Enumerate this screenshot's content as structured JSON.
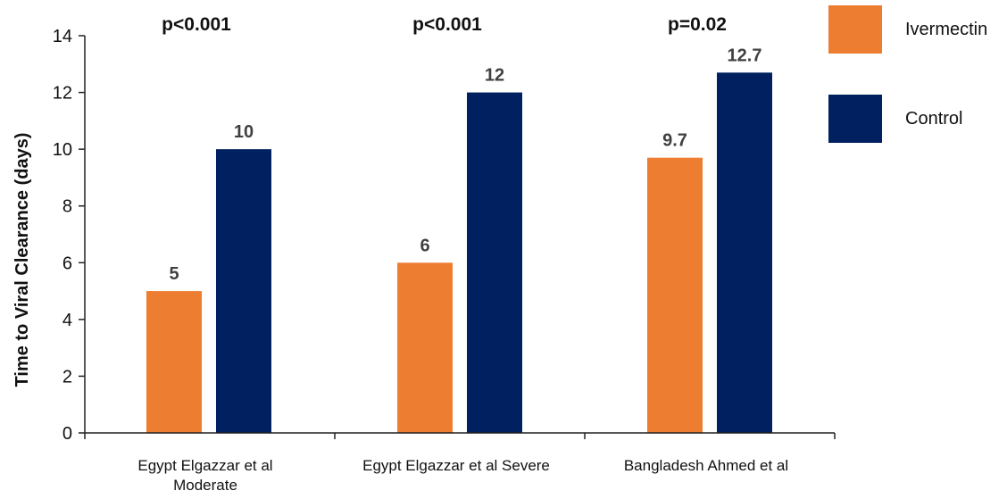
{
  "chart_data": {
    "type": "bar",
    "title": "",
    "xlabel": "",
    "ylabel": "Time to Viral Clearance (days)",
    "ylim": [
      0,
      14
    ],
    "yticks": [
      0,
      2,
      4,
      6,
      8,
      10,
      12,
      14
    ],
    "categories": [
      [
        "Egypt Elgazzar et al",
        "Moderate"
      ],
      [
        "Egypt Elgazzar et al Severe"
      ],
      [
        "Bangladesh Ahmed et al"
      ]
    ],
    "series": [
      {
        "name": "Ivermectin",
        "color": "#ED7D31",
        "values": [
          5,
          6,
          9.7
        ],
        "labels": [
          "5",
          "6",
          "9.7"
        ]
      },
      {
        "name": "Control",
        "color": "#002060",
        "values": [
          10,
          12,
          12.7
        ],
        "labels": [
          "10",
          "12",
          "12.7"
        ]
      }
    ],
    "annotations": [
      "p<0.001",
      "p<0.001",
      "p=0.02"
    ],
    "legend_position": "top-right",
    "grid": false
  }
}
